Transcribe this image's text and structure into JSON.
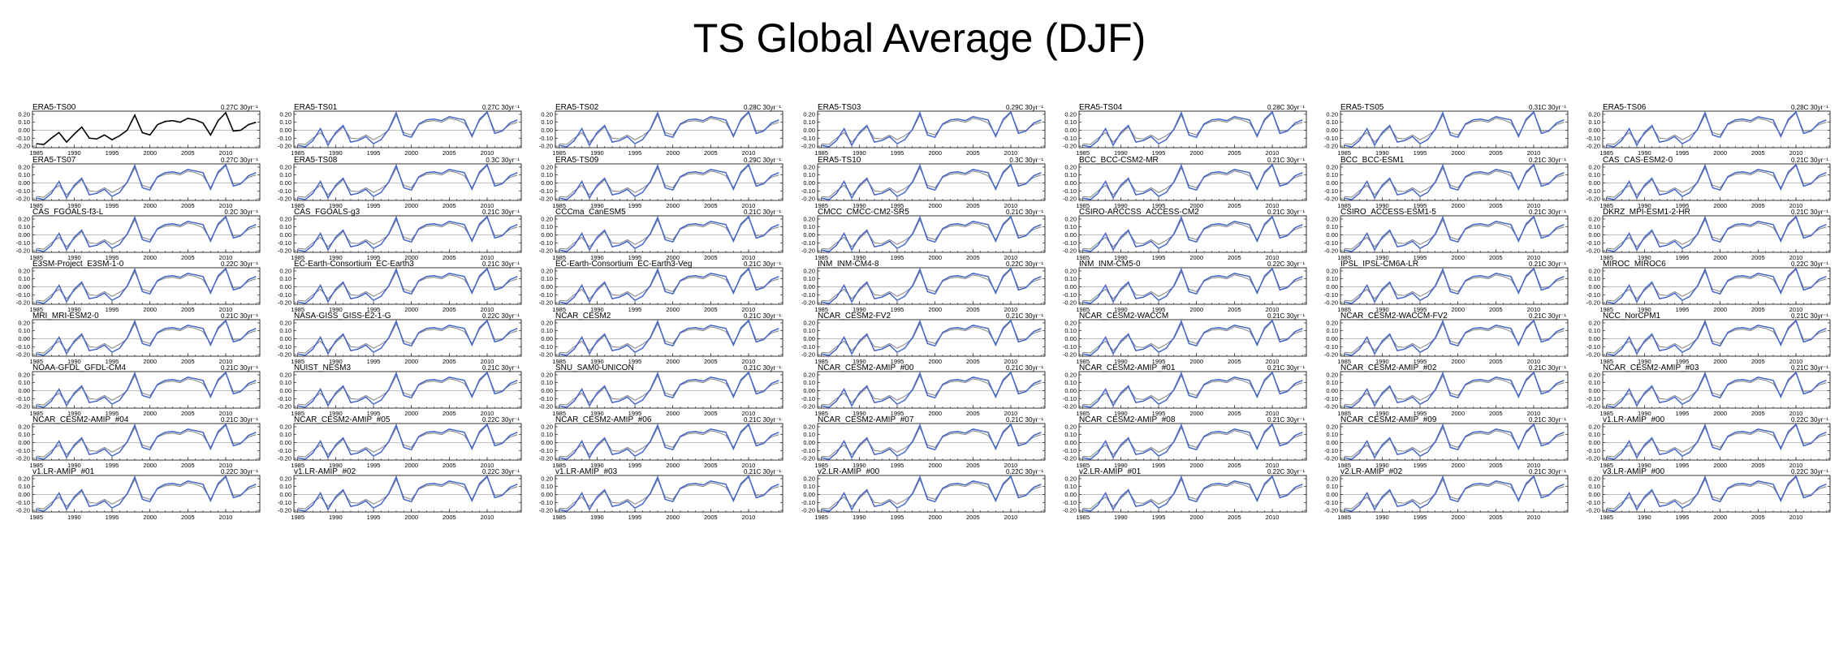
{
  "page": {
    "title": "TS Global Average (DJF)"
  },
  "chart_data": {
    "type": "line",
    "layout": {
      "rows": 8,
      "cols": 7
    },
    "x": [
      1985,
      1986,
      1987,
      1988,
      1989,
      1990,
      1991,
      1992,
      1993,
      1994,
      1995,
      1996,
      1997,
      1998,
      1999,
      2000,
      2001,
      2002,
      2003,
      2004,
      2005,
      2006,
      2007,
      2008,
      2009,
      2010,
      2011,
      2012,
      2013,
      2014
    ],
    "xlim": [
      1984.5,
      2014.5
    ],
    "ylim": [
      -0.22,
      0.24
    ],
    "yticks": [
      -0.2,
      -0.1,
      0.0,
      0.1,
      0.2
    ],
    "ytick_labels": [
      "-0.20",
      "-0.10",
      "0.00",
      "0.10",
      "0.20"
    ],
    "xticks": [
      1985,
      1990,
      1995,
      2000,
      2005,
      2010
    ],
    "xtick_labels": [
      "1985",
      "1990",
      "1995",
      "2000",
      "2005",
      "2010"
    ],
    "reference_series": {
      "color": "#000000",
      "values": [
        -0.17,
        -0.18,
        -0.1,
        -0.03,
        -0.15,
        -0.05,
        0.04,
        -0.1,
        -0.11,
        -0.06,
        -0.12,
        -0.07,
        0.0,
        0.19,
        -0.03,
        -0.06,
        0.07,
        0.11,
        0.12,
        0.1,
        0.15,
        0.13,
        0.09,
        -0.06,
        0.12,
        0.22,
        -0.01,
        0.0,
        0.07,
        0.1
      ]
    },
    "model_series": {
      "color": "#4466cc",
      "values": [
        -0.19,
        -0.21,
        -0.13,
        0.02,
        -0.19,
        -0.03,
        0.06,
        -0.15,
        -0.13,
        -0.08,
        -0.17,
        -0.12,
        0.01,
        0.22,
        -0.06,
        -0.09,
        0.08,
        0.13,
        0.14,
        0.12,
        0.17,
        0.15,
        0.13,
        -0.08,
        0.14,
        0.23,
        -0.04,
        -0.01,
        0.09,
        0.13
      ]
    },
    "panels": [
      {
        "title": "ERA5-TS00",
        "trend": "0.27C 30yr⁻¹",
        "style": "reference"
      },
      {
        "title": "ERA5-TS01",
        "trend": "0.27C 30yr⁻¹"
      },
      {
        "title": "ERA5-TS02",
        "trend": "0.28C 30yr⁻¹"
      },
      {
        "title": "ERA5-TS03",
        "trend": "0.29C 30yr⁻¹"
      },
      {
        "title": "ERA5-TS04",
        "trend": "0.28C 30yr⁻¹"
      },
      {
        "title": "ERA5-TS05",
        "trend": "0.31C 30yr⁻¹"
      },
      {
        "title": "ERA5-TS06",
        "trend": "0.28C 30yr⁻¹"
      },
      {
        "title": "ERA5-TS07",
        "trend": "0.27C 30yr⁻¹"
      },
      {
        "title": "ERA5-TS08",
        "trend": "0.3C 30yr⁻¹"
      },
      {
        "title": "ERA5-TS09",
        "trend": "0.29C 30yr⁻¹"
      },
      {
        "title": "ERA5-TS10",
        "trend": "0.3C 30yr⁻¹"
      },
      {
        "title": "BCC_BCC-CSM2-MR",
        "trend": "0.21C 30yr⁻¹"
      },
      {
        "title": "BCC_BCC-ESM1",
        "trend": "0.21C 30yr⁻¹"
      },
      {
        "title": "CAS_CAS-ESM2-0",
        "trend": "0.21C 30yr⁻¹"
      },
      {
        "title": "CAS_FGOALS-f3-L",
        "trend": "0.2C 30yr⁻¹"
      },
      {
        "title": "CAS_FGOALS-g3",
        "trend": "0.21C 30yr⁻¹"
      },
      {
        "title": "CCCma_CanESM5",
        "trend": "0.21C 30yr⁻¹"
      },
      {
        "title": "CMCC_CMCC-CM2-SR5",
        "trend": "0.21C 30yr⁻¹"
      },
      {
        "title": "CSIRO-ARCCSS_ACCESS-CM2",
        "trend": "0.21C 30yr⁻¹"
      },
      {
        "title": "CSIRO_ACCESS-ESM1-5",
        "trend": "0.21C 30yr⁻¹"
      },
      {
        "title": "DKRZ_MPI-ESM1-2-HR",
        "trend": "0.21C 30yr⁻¹"
      },
      {
        "title": "E3SM-Project_E3SM-1-0",
        "trend": "0.22C 30yr⁻¹"
      },
      {
        "title": "EC-Earth-Consortium_EC-Earth3",
        "trend": "0.21C 30yr⁻¹"
      },
      {
        "title": "EC-Earth-Consortium_EC-Earth3-Veg",
        "trend": "0.21C 30yr⁻¹"
      },
      {
        "title": "INM_INM-CM4-8",
        "trend": "0.22C 30yr⁻¹"
      },
      {
        "title": "INM_INM-CM5-0",
        "trend": "0.22C 30yr⁻¹"
      },
      {
        "title": "IPSL_IPSL-CM6A-LR",
        "trend": "0.21C 30yr⁻¹"
      },
      {
        "title": "MIROC_MIROC6",
        "trend": "0.22C 30yr⁻¹"
      },
      {
        "title": "MRI_MRI-ESM2-0",
        "trend": "0.21C 30yr⁻¹"
      },
      {
        "title": "NASA-GISS_GISS-E2-1-G",
        "trend": "0.22C 30yr⁻¹"
      },
      {
        "title": "NCAR_CESM2",
        "trend": "0.21C 30yr⁻¹"
      },
      {
        "title": "NCAR_CESM2-FV2",
        "trend": "0.21C 30yr⁻¹"
      },
      {
        "title": "NCAR_CESM2-WACCM",
        "trend": "0.21C 30yr⁻¹"
      },
      {
        "title": "NCAR_CESM2-WACCM-FV2",
        "trend": "0.21C 30yr⁻¹"
      },
      {
        "title": "NCC_NorCPM1",
        "trend": "0.21C 30yr⁻¹"
      },
      {
        "title": "NOAA-GFDL_GFDL-CM4",
        "trend": "0.21C 30yr⁻¹"
      },
      {
        "title": "NUIST_NESM3",
        "trend": "0.21C 30yr⁻¹"
      },
      {
        "title": "SNU_SAM0-UNICON",
        "trend": "0.21C 30yr⁻¹"
      },
      {
        "title": "NCAR_CESM2-AMIP_#00",
        "trend": "0.21C 30yr⁻¹"
      },
      {
        "title": "NCAR_CESM2-AMIP_#01",
        "trend": "0.21C 30yr⁻¹"
      },
      {
        "title": "NCAR_CESM2-AMIP_#02",
        "trend": "0.21C 30yr⁻¹"
      },
      {
        "title": "NCAR_CESM2-AMIP_#03",
        "trend": "0.21C 30yr⁻¹"
      },
      {
        "title": "NCAR_CESM2-AMIP_#04",
        "trend": "0.21C 30yr⁻¹"
      },
      {
        "title": "NCAR_CESM2-AMIP_#05",
        "trend": "0.22C 30yr⁻¹"
      },
      {
        "title": "NCAR_CESM2-AMIP_#06",
        "trend": "0.21C 30yr⁻¹"
      },
      {
        "title": "NCAR_CESM2-AMIP_#07",
        "trend": "0.21C 30yr⁻¹"
      },
      {
        "title": "NCAR_CESM2-AMIP_#08",
        "trend": "0.21C 30yr⁻¹"
      },
      {
        "title": "NCAR_CESM2-AMIP_#09",
        "trend": "0.21C 30yr⁻¹"
      },
      {
        "title": "v1.LR-AMIP_#00",
        "trend": "0.22C 30yr⁻¹"
      },
      {
        "title": "v1.LR-AMIP_#01",
        "trend": "0.22C 30yr⁻¹"
      },
      {
        "title": "v1.LR-AMIP_#02",
        "trend": "0.22C 30yr⁻¹"
      },
      {
        "title": "v1.LR-AMIP_#03",
        "trend": "0.21C 30yr⁻¹"
      },
      {
        "title": "v2.LR-AMIP_#00",
        "trend": "0.22C 30yr⁻¹"
      },
      {
        "title": "v2.LR-AMIP_#01",
        "trend": "0.22C 30yr⁻¹"
      },
      {
        "title": "v2.LR-AMIP_#02",
        "trend": "0.21C 30yr⁻¹"
      },
      {
        "title": "v3.LR-AMIP_#00",
        "trend": "0.22C 30yr⁻¹"
      }
    ]
  }
}
